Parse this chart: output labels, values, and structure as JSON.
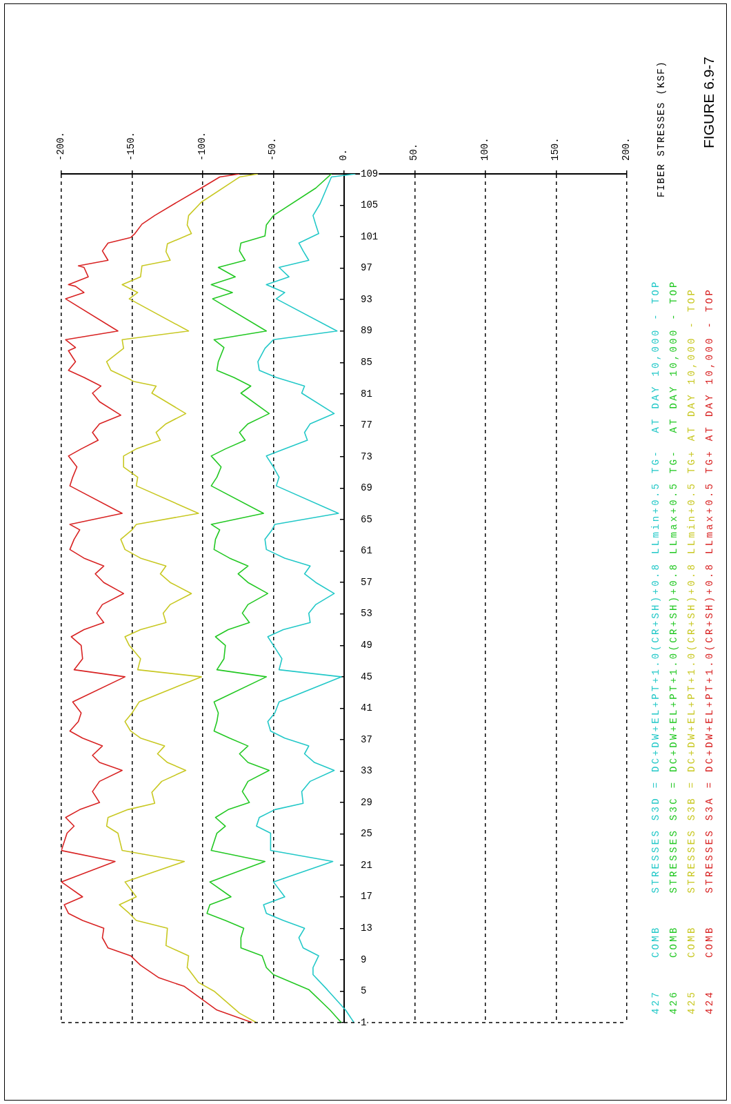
{
  "chart_data": {
    "type": "line",
    "orientation": "horizontal",
    "title": "FIGURE 6.9-7",
    "annotations": [
      "FIBER STRESSES (KSF)"
    ],
    "xlim": [
      -200,
      200
    ],
    "xticks": [
      {
        "value": -200,
        "label": "-200."
      },
      {
        "value": -150,
        "label": "-150."
      },
      {
        "value": -100,
        "label": "-100."
      },
      {
        "value": -50,
        "label": "-50."
      },
      {
        "value": 0,
        "label": "0."
      },
      {
        "value": 50,
        "label": "50."
      },
      {
        "value": 100,
        "label": "100."
      },
      {
        "value": 150,
        "label": "150."
      },
      {
        "value": 200,
        "label": "200."
      }
    ],
    "ylim": [
      1,
      109
    ],
    "yticks": [
      1,
      5,
      9,
      13,
      17,
      21,
      25,
      29,
      33,
      37,
      41,
      45,
      49,
      53,
      57,
      61,
      65,
      69,
      73,
      77,
      81,
      85,
      89,
      93,
      97,
      101,
      105,
      109
    ],
    "grid": "x",
    "legend": "right",
    "series": [
      {
        "name": "427    COMB    STRESSES S3D = DC+DW+EL+PT+1.0(CR+SH)+0.8 LLmin+0.5 TG-  AT DAY 10,000 - TOP",
        "color": "#22c8c8",
        "values": [
          7,
          1,
          -12,
          -22,
          -22,
          -18,
          -29,
          -32,
          -28,
          -43,
          -55,
          -57,
          -42,
          -50,
          -8,
          -52,
          -52,
          -62,
          -60,
          -49,
          -29,
          -30,
          -24,
          -7,
          -21,
          -28,
          -25,
          -42,
          -52,
          -54,
          -49,
          -46,
          -2,
          -46,
          -44,
          -50,
          -54,
          -43,
          -24,
          -25,
          -20,
          -7,
          -20,
          -28,
          -24,
          -42,
          -55,
          -56,
          -51,
          -49,
          -4,
          -48,
          -46,
          -50,
          -55,
          -42,
          -26,
          -28,
          -24,
          -7,
          -30,
          -28,
          -48,
          -60,
          -61,
          -56,
          -50,
          -5,
          -48,
          -42,
          -55,
          -39,
          -46,
          -25,
          -29,
          -32,
          -18,
          -20,
          -22,
          -17,
          -9,
          8
        ],
        "x": [
          1,
          2.6,
          5.2,
          7.1,
          8.0,
          9.5,
          10.5,
          11.8,
          13,
          14.0,
          14.9,
          16.0,
          17,
          18.9,
          21.5,
          22.9,
          25.1,
          26.0,
          27.1,
          28.1,
          28.9,
          30.4,
          31.7,
          33.1,
          34.1,
          35.2,
          36.2,
          37.2,
          38.1,
          39.3,
          40.4,
          41.8,
          45,
          45.9,
          47.3,
          49,
          50.1,
          51.0,
          51.9,
          53.1,
          54.2,
          55.6,
          57,
          58.1,
          59.1,
          60.1,
          61.2,
          62.5,
          63.7,
          64.4,
          65.8,
          69.3,
          70.4,
          71.7,
          73.1,
          74.0,
          75.1,
          76.1,
          77.2,
          78.5,
          81.1,
          82.0,
          83.1,
          84.0,
          85.1,
          86.8,
          87.9,
          89,
          93.1,
          93.9,
          94.9,
          95.9,
          97.1,
          98.0,
          99.2,
          100.2,
          101.4,
          102.5,
          103.7,
          105.2,
          108.6,
          109
        ]
      },
      {
        "name": "426    COMB    STRESSES S3C = DC+DW+EL+PT+1.0(CR+SH)+0.8 LLmax+0.5 TG-  AT DAY 10,000 - TOP",
        "color": "#22c822",
        "values": [
          -2,
          -10,
          -25,
          -50,
          -55,
          -58,
          -73,
          -73,
          -71,
          -84,
          -97,
          -95,
          -80,
          -95,
          -56,
          -94,
          -90,
          -84,
          -91,
          -82,
          -67,
          -72,
          -68,
          -53,
          -68,
          -74,
          -68,
          -81,
          -92,
          -90,
          -89,
          -92,
          -55,
          -90,
          -85,
          -84,
          -91,
          -82,
          -67,
          -72,
          -68,
          -54,
          -68,
          -75,
          -68,
          -81,
          -92,
          -91,
          -88,
          -94,
          -57,
          -94,
          -90,
          -87,
          -94,
          -84,
          -70,
          -74,
          -68,
          -53,
          -73,
          -66,
          -78,
          -90,
          -89,
          -85,
          -92,
          -55,
          -93,
          -79,
          -94,
          -77,
          -89,
          -70,
          -74,
          -73,
          -56,
          -55,
          -50,
          -20,
          -9
        ],
        "x": [
          1,
          2.6,
          5.2,
          7.1,
          8.0,
          9.5,
          10.5,
          11.8,
          13,
          14.0,
          14.9,
          16.0,
          17,
          18.9,
          21.5,
          22.9,
          25.1,
          26.0,
          27.1,
          28.1,
          29,
          30.4,
          31.7,
          33.1,
          34.1,
          35.2,
          36.2,
          37.2,
          38.1,
          39.3,
          40.4,
          41.8,
          45,
          45.9,
          47.3,
          49,
          50.1,
          51.0,
          51.9,
          53.1,
          54.2,
          55.6,
          57,
          58.1,
          59.1,
          60.1,
          61.2,
          62.5,
          63.7,
          64.4,
          65.8,
          69.3,
          70.4,
          71.7,
          73.1,
          74.0,
          75.1,
          76.1,
          77.2,
          78.5,
          81.1,
          82.0,
          83.1,
          84.0,
          85.1,
          86.9,
          87.9,
          89,
          93.1,
          93.9,
          94.9,
          95.9,
          97.1,
          98.0,
          99.2,
          100.2,
          101.1,
          102.5,
          103.7,
          107.2,
          109
        ]
      },
      {
        "name": "425    COMB    STRESSES S3B = DC+DW+EL+PT+1.0(CR+SH)+0.8 LLmin+0.5 TG+ AT DAY 10,000 - TOP",
        "color": "#c8c822",
        "values": [
          -62,
          -74,
          -92,
          -103,
          -111,
          -110,
          -126,
          -125,
          -147,
          -152,
          -159,
          -147,
          -155,
          -113,
          -157,
          -160,
          -168,
          -167,
          -153,
          -134,
          -136,
          -129,
          -112,
          -125,
          -132,
          -127,
          -144,
          -151,
          -155,
          -150,
          -145,
          -101,
          -146,
          -144,
          -152,
          -155,
          -144,
          -126,
          -128,
          -123,
          -108,
          -123,
          -130,
          -126,
          -144,
          -155,
          -158,
          -150,
          -147,
          -103,
          -147,
          -146,
          -156,
          -156,
          -147,
          -130,
          -133,
          -126,
          -112,
          -136,
          -133,
          -149,
          -152,
          -165,
          -168,
          -156,
          -157,
          -110,
          -152,
          -146,
          -157,
          -144,
          -143,
          -123,
          -126,
          -125,
          -108,
          -111,
          -110,
          -101,
          -74,
          -61
        ],
        "x": [
          1,
          2.2,
          5,
          6.1,
          8.0,
          9.5,
          10.8,
          13,
          14.0,
          14.9,
          16.0,
          17,
          18.9,
          21.5,
          22.9,
          25.1,
          26.0,
          27.1,
          28.1,
          28.9,
          30.3,
          31.7,
          33.1,
          34.1,
          35.2,
          36.2,
          37.2,
          38.1,
          39.3,
          40.4,
          41.8,
          45,
          45.9,
          47.3,
          49,
          50.1,
          51.0,
          51.9,
          53.1,
          54.2,
          55.6,
          57,
          58.1,
          59.1,
          60.1,
          61.2,
          62.5,
          63.7,
          64.4,
          65.8,
          69.3,
          70.4,
          71.7,
          73.1,
          74.0,
          75.1,
          76.1,
          77.2,
          78.5,
          81.1,
          82.0,
          82.6,
          82.9,
          84.0,
          85.1,
          86.8,
          87.9,
          89,
          93.1,
          93.9,
          94.9,
          95.9,
          97.3,
          98.0,
          99.1,
          100.1,
          101.4,
          102.5,
          103.7,
          105.4,
          108.6,
          109
        ]
      },
      {
        "name": "424    COMB    STRESSES S3A = DC+DW+EL+PT+1.0(CR+SH)+0.8 LLmax+0.5 TG+ AT DAY 10,000 - TOP",
        "color": "#d82222",
        "values": [
          -65,
          -90,
          -113,
          -131,
          -144,
          -151,
          -167,
          -171,
          -170,
          -185,
          -195,
          -198,
          -185,
          -200,
          -162,
          -200,
          -196,
          -191,
          -197,
          -187,
          -173,
          -178,
          -173,
          -157,
          -173,
          -178,
          -171,
          -185,
          -194,
          -188,
          -186,
          -192,
          -155,
          -191,
          -185,
          -186,
          -193,
          -184,
          -170,
          -175,
          -171,
          -156,
          -170,
          -176,
          -170,
          -184,
          -194,
          -191,
          -187,
          -194,
          -157,
          -194,
          -192,
          -189,
          -195,
          -186,
          -174,
          -178,
          -173,
          -158,
          -173,
          -178,
          -172,
          -184,
          -195,
          -190,
          -195,
          -190,
          -197,
          -160,
          -197,
          -184,
          -190,
          -195,
          -181,
          -184,
          -188,
          -167,
          -171,
          -167,
          -151,
          -148,
          -143,
          -134,
          -120,
          -101,
          -88,
          -74
        ],
        "x": [
          1,
          2.6,
          5.6,
          6.7,
          8.3,
          9.5,
          10.5,
          11.8,
          13,
          14.0,
          14.9,
          16.0,
          17,
          18.9,
          21.5,
          22.9,
          25.1,
          26.0,
          27.1,
          28.1,
          29,
          30.4,
          31.7,
          33.1,
          34.1,
          35.0,
          36.2,
          37.2,
          38.1,
          39.3,
          40.4,
          41.8,
          45,
          45.9,
          47.3,
          49,
          50.1,
          51.0,
          51.9,
          53.1,
          54.2,
          55.6,
          57,
          58.1,
          59.1,
          60.1,
          61.2,
          62.5,
          63.7,
          64.4,
          65.8,
          69.3,
          70.4,
          71.7,
          73.1,
          74.0,
          75.1,
          76.1,
          77.2,
          78.3,
          80.0,
          81.1,
          82.0,
          83.1,
          84.0,
          85.1,
          86.5,
          86.9,
          87.9,
          89,
          93.1,
          93.9,
          94.7,
          94.9,
          95.9,
          97.1,
          97.3,
          98.0,
          99.2,
          100.2,
          100.9,
          101.4,
          102.6,
          103.7,
          105.2,
          107.2,
          108.6,
          109
        ]
      }
    ]
  }
}
